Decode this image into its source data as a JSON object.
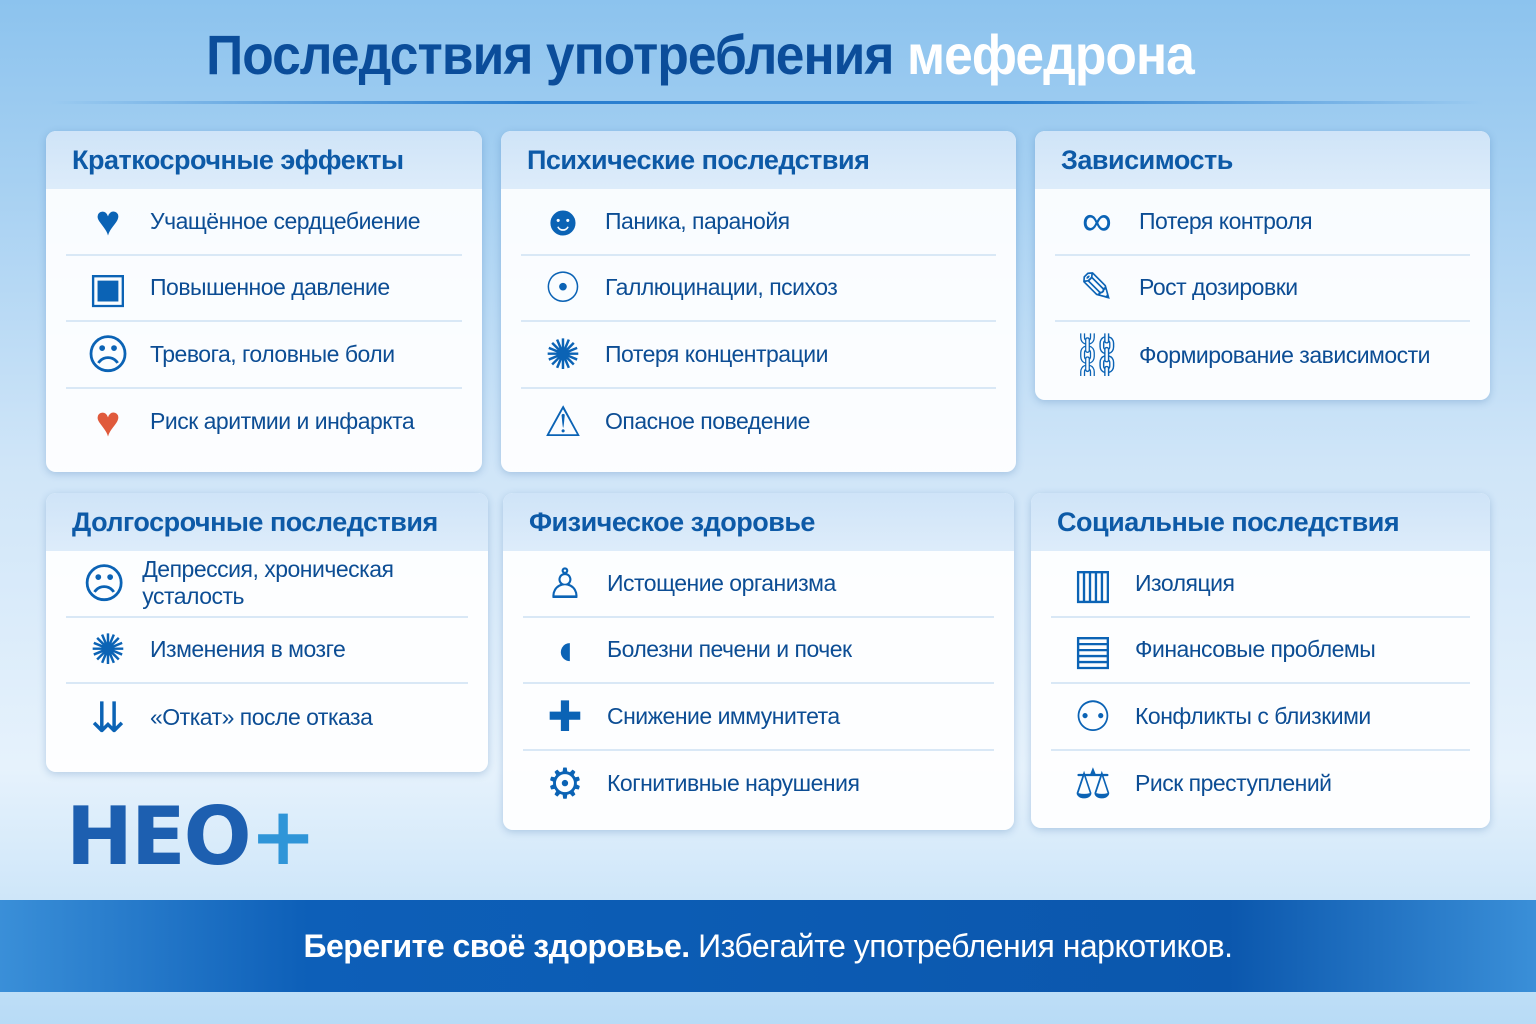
{
  "title": {
    "main": "Последствия употребления",
    "highlight": "мефедрона"
  },
  "colors": {
    "primary": "#0b4d9a",
    "accent": "#0b63b5",
    "heart_red": "#e05a3c"
  },
  "cards": [
    {
      "title": "Краткосрочные эффекты",
      "items": [
        {
          "icon": "heartbeat-icon",
          "glyph": "♥",
          "label": "Учащённое сердцебиение"
        },
        {
          "icon": "blood-pressure-monitor-icon",
          "glyph": "▣",
          "label": "Повышенное давление"
        },
        {
          "icon": "anxious-person-icon",
          "glyph": "☹",
          "label": "Тревога, головные боли"
        },
        {
          "icon": "heart-pulse-red-icon",
          "glyph": "♥",
          "label": "Риск аритмии и инфаркта"
        }
      ]
    },
    {
      "title": "Психические последствия",
      "items": [
        {
          "icon": "panic-person-icon",
          "glyph": "☻",
          "label": "Паника, паранойя"
        },
        {
          "icon": "head-hallucination-icon",
          "glyph": "☉",
          "label": "Галлюцинации, психоз"
        },
        {
          "icon": "brain-icon",
          "glyph": "✺",
          "label": "Потеря концентрации"
        },
        {
          "icon": "warning-icon",
          "glyph": "⚠",
          "label": "Опасное поведение"
        }
      ]
    },
    {
      "title": "Зависимость",
      "items": [
        {
          "icon": "handcuffs-icon",
          "glyph": "∞",
          "label": "Потеря контроля"
        },
        {
          "icon": "syringe-icon",
          "glyph": "✎",
          "label": "Рост дозировки"
        },
        {
          "icon": "chain-link-icon",
          "glyph": "⛓",
          "label": "Формирование зависимости"
        }
      ]
    },
    {
      "title": "Долгосрочные последствия",
      "items": [
        {
          "icon": "sad-face-icon",
          "glyph": "☹",
          "label": "Депрессия, хроническая усталость"
        },
        {
          "icon": "brain-tree-icon",
          "glyph": "✺",
          "label": "Изменения в мозге"
        },
        {
          "icon": "down-arrows-icon",
          "glyph": "⇊",
          "label": "«Откат» после отказа"
        }
      ]
    },
    {
      "title": "Физическое здоровье",
      "items": [
        {
          "icon": "exhausted-body-icon",
          "glyph": "♙",
          "label": "Истощение организма"
        },
        {
          "icon": "liver-icon",
          "glyph": "◖",
          "label": "Болезни печени и почек"
        },
        {
          "icon": "shield-cross-icon",
          "glyph": "✚",
          "label": "Снижение иммунитета"
        },
        {
          "icon": "head-gears-icon",
          "glyph": "⚙",
          "label": "Когнитивные нарушения"
        }
      ]
    },
    {
      "title": "Социальные последствия",
      "items": [
        {
          "icon": "person-behind-bars-icon",
          "glyph": "▥",
          "label": "Изоляция"
        },
        {
          "icon": "wallet-icon",
          "glyph": "▤",
          "label": "Финансовые проблемы"
        },
        {
          "icon": "conflict-people-icon",
          "glyph": "⚇",
          "label": "Конфликты с близкими"
        },
        {
          "icon": "gavel-icon",
          "glyph": "⚖",
          "label": "Риск преступлений"
        }
      ]
    }
  ],
  "logo": {
    "text": "НЕО",
    "plus": "+"
  },
  "footer": {
    "bold": "Берегите своё здоровье.",
    "regular": "Избегайте употребления наркотиков."
  }
}
